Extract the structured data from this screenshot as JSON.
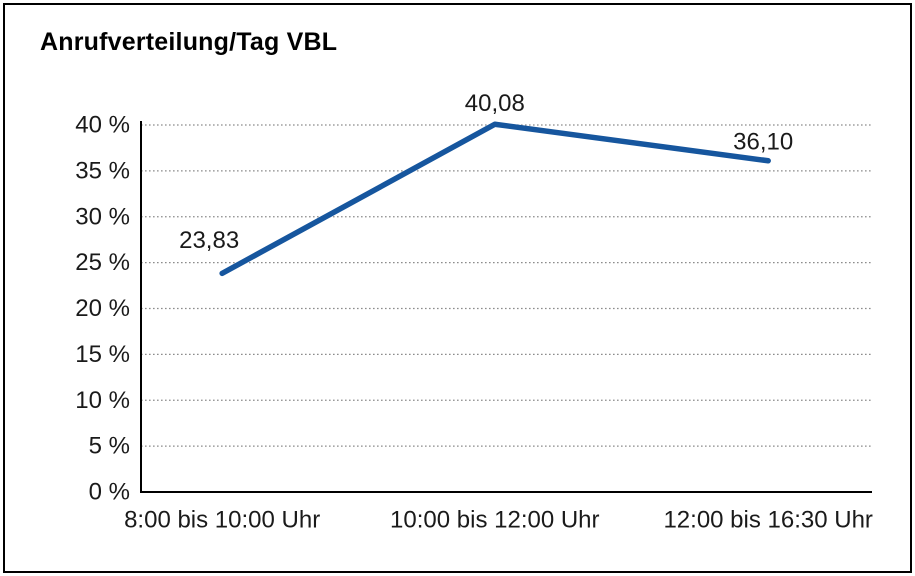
{
  "chart_data": {
    "type": "line",
    "title": "Anrufverteilung/Tag VBL",
    "categories": [
      "8:00 bis 10:00 Uhr",
      "10:00 bis 12:00 Uhr",
      "12:00 bis 16:30 Uhr"
    ],
    "values": [
      23.83,
      40.08,
      36.1
    ],
    "data_labels": [
      "23,83",
      "40,08",
      "36,10"
    ],
    "xlabel": "",
    "ylabel": "",
    "ylim": [
      0,
      40
    ],
    "y_ticks": [
      0,
      5,
      10,
      15,
      20,
      25,
      30,
      35,
      40
    ],
    "y_tick_labels": [
      "0 %",
      "5 %",
      "10 %",
      "15 %",
      "20 %",
      "25 %",
      "30 %",
      "35 %",
      "40 %"
    ],
    "grid": "horizontal-dotted",
    "legend": "none",
    "line_color": "#16569E",
    "text_color": "#1a1a1a",
    "grid_color": "#8c8c8c",
    "axis_color": "#000000"
  }
}
